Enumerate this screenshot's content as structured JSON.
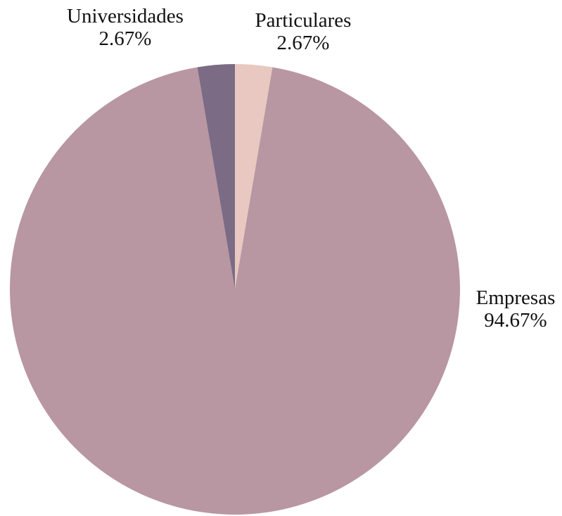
{
  "chart_data": {
    "type": "pie",
    "title": "",
    "start_angle_deg": 0,
    "direction": "clockwise",
    "slices": [
      {
        "label": "Particulares",
        "value": 2.67,
        "value_label": "2.67%",
        "color": "#e8c8c0"
      },
      {
        "label": "Empresas",
        "value": 94.67,
        "value_label": "94.67%",
        "color": "#b896a2"
      },
      {
        "label": "Universidades",
        "value": 2.67,
        "value_label": "2.67%",
        "color": "#7b6b85"
      }
    ],
    "legend": "none"
  }
}
